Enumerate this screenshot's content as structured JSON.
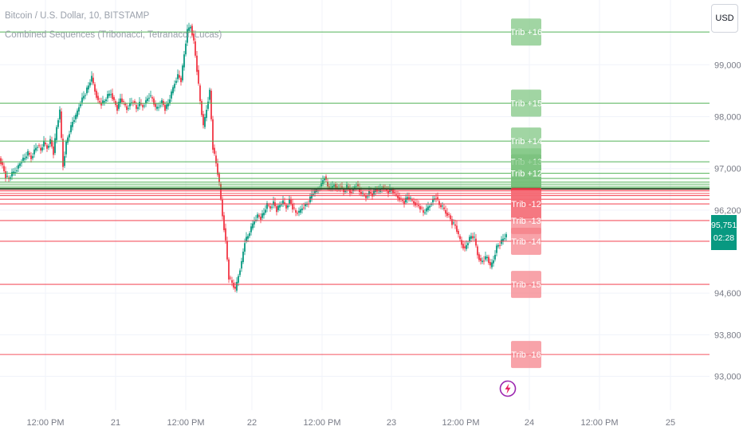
{
  "header": {
    "symbol_line": "Bitcoin / U.S. Dollar, 10, BITSTAMP",
    "indicator_line": "Combined Sequences (Tribonacci, Tetranacci, Lucas)"
  },
  "currency_button": "USD",
  "last_price": {
    "value": "95,751",
    "countdown": "02:28"
  },
  "colors": {
    "up": "#089981",
    "down": "#f23645",
    "grid": "#f0f3fa",
    "level_up": "#4caf50",
    "level_down": "#f23645"
  },
  "chart_data": {
    "type": "candlestick",
    "title": "Bitcoin / U.S. Dollar, 10, BITSTAMP",
    "ylim": [
      92800,
      100400
    ],
    "y_ticks": [
      93000,
      93800,
      94600,
      96200,
      97000,
      98000,
      99000
    ],
    "y_tick_labels": [
      "93,000",
      "93,800",
      "94,600",
      "96,200",
      "97,000",
      "98,000",
      "99,000"
    ],
    "x_ticks": [
      "12:00 PM",
      "21",
      "12:00 PM",
      "22",
      "12:00 PM",
      "23",
      "12:00 PM",
      "24",
      "12:00 PM",
      "25"
    ],
    "price_path": [
      [
        0,
        97200
      ],
      [
        4,
        97050
      ],
      [
        8,
        96850
      ],
      [
        12,
        96800
      ],
      [
        16,
        96900
      ],
      [
        20,
        96950
      ],
      [
        24,
        97050
      ],
      [
        28,
        97150
      ],
      [
        32,
        97200
      ],
      [
        36,
        97300
      ],
      [
        40,
        97200
      ],
      [
        44,
        97350
      ],
      [
        48,
        97450
      ],
      [
        52,
        97350
      ],
      [
        56,
        97500
      ],
      [
        60,
        97400
      ],
      [
        64,
        97550
      ],
      [
        68,
        97300
      ],
      [
        72,
        97800
      ],
      [
        76,
        98100
      ],
      [
        80,
        97050
      ],
      [
        84,
        97500
      ],
      [
        88,
        97700
      ],
      [
        92,
        97900
      ],
      [
        96,
        98000
      ],
      [
        100,
        98200
      ],
      [
        104,
        98350
      ],
      [
        108,
        98450
      ],
      [
        112,
        98600
      ],
      [
        116,
        98750
      ],
      [
        120,
        98500
      ],
      [
        124,
        98300
      ],
      [
        128,
        98250
      ],
      [
        132,
        98300
      ],
      [
        136,
        98400
      ],
      [
        140,
        98450
      ],
      [
        144,
        98300
      ],
      [
        148,
        98150
      ],
      [
        152,
        98350
      ],
      [
        156,
        98250
      ],
      [
        160,
        98150
      ],
      [
        164,
        98250
      ],
      [
        168,
        98300
      ],
      [
        172,
        98150
      ],
      [
        176,
        98250
      ],
      [
        180,
        98200
      ],
      [
        184,
        98300
      ],
      [
        188,
        98400
      ],
      [
        192,
        98350
      ],
      [
        196,
        98150
      ],
      [
        200,
        98200
      ],
      [
        204,
        98300
      ],
      [
        208,
        98150
      ],
      [
        212,
        98250
      ],
      [
        216,
        98450
      ],
      [
        220,
        98650
      ],
      [
        224,
        98800
      ],
      [
        228,
        98700
      ],
      [
        232,
        99200
      ],
      [
        236,
        99650
      ],
      [
        240,
        99750
      ],
      [
        244,
        99450
      ],
      [
        248,
        98900
      ],
      [
        252,
        98300
      ],
      [
        256,
        97800
      ],
      [
        260,
        98150
      ],
      [
        264,
        98500
      ],
      [
        268,
        97400
      ],
      [
        272,
        97100
      ],
      [
        276,
        96700
      ],
      [
        280,
        96100
      ],
      [
        284,
        95600
      ],
      [
        288,
        94900
      ],
      [
        292,
        94800
      ],
      [
        296,
        94650
      ],
      [
        300,
        94950
      ],
      [
        304,
        95200
      ],
      [
        308,
        95600
      ],
      [
        312,
        95700
      ],
      [
        316,
        95850
      ],
      [
        320,
        96000
      ],
      [
        324,
        96100
      ],
      [
        328,
        96050
      ],
      [
        332,
        96150
      ],
      [
        336,
        96300
      ],
      [
        340,
        96250
      ],
      [
        344,
        96350
      ],
      [
        348,
        96200
      ],
      [
        352,
        96300
      ],
      [
        356,
        96350
      ],
      [
        360,
        96250
      ],
      [
        364,
        96400
      ],
      [
        368,
        96250
      ],
      [
        372,
        96150
      ],
      [
        376,
        96150
      ],
      [
        380,
        96250
      ],
      [
        384,
        96300
      ],
      [
        388,
        96350
      ],
      [
        392,
        96500
      ],
      [
        396,
        96550
      ],
      [
        400,
        96600
      ],
      [
        404,
        96700
      ],
      [
        408,
        96850
      ],
      [
        412,
        96650
      ],
      [
        416,
        96600
      ],
      [
        420,
        96700
      ],
      [
        424,
        96600
      ],
      [
        428,
        96650
      ],
      [
        432,
        96550
      ],
      [
        436,
        96650
      ],
      [
        440,
        96550
      ],
      [
        444,
        96600
      ],
      [
        448,
        96700
      ],
      [
        452,
        96550
      ],
      [
        456,
        96500
      ],
      [
        460,
        96450
      ],
      [
        464,
        96550
      ],
      [
        468,
        96500
      ],
      [
        472,
        96600
      ],
      [
        476,
        96550
      ],
      [
        480,
        96650
      ],
      [
        484,
        96600
      ],
      [
        488,
        96550
      ],
      [
        492,
        96600
      ],
      [
        496,
        96500
      ],
      [
        500,
        96450
      ],
      [
        504,
        96400
      ],
      [
        508,
        96350
      ],
      [
        512,
        96450
      ],
      [
        516,
        96400
      ],
      [
        520,
        96350
      ],
      [
        524,
        96300
      ],
      [
        528,
        96250
      ],
      [
        532,
        96150
      ],
      [
        536,
        96200
      ],
      [
        540,
        96300
      ],
      [
        544,
        96400
      ],
      [
        548,
        96450
      ],
      [
        552,
        96300
      ],
      [
        556,
        96250
      ],
      [
        560,
        96150
      ],
      [
        564,
        96100
      ],
      [
        568,
        95950
      ],
      [
        572,
        95900
      ],
      [
        576,
        95700
      ],
      [
        580,
        95550
      ],
      [
        584,
        95450
      ],
      [
        588,
        95600
      ],
      [
        592,
        95700
      ],
      [
        596,
        95650
      ],
      [
        600,
        95350
      ],
      [
        604,
        95200
      ],
      [
        608,
        95250
      ],
      [
        612,
        95300
      ],
      [
        616,
        95100
      ],
      [
        620,
        95250
      ],
      [
        624,
        95500
      ],
      [
        628,
        95550
      ],
      [
        632,
        95650
      ],
      [
        636,
        95700
      ]
    ],
    "levels": [
      {
        "name": "Trib +16",
        "price": 99630,
        "kind": "up",
        "label_visible": true
      },
      {
        "name": "Trib +15",
        "price": 98260,
        "kind": "up",
        "label_visible": true
      },
      {
        "name": "Trib +14",
        "price": 97530,
        "kind": "up",
        "label_visible": true
      },
      {
        "name": "Trib +13",
        "price": 97130,
        "kind": "up",
        "label_visible": true
      },
      {
        "name": "Trib +12",
        "price": 96910,
        "kind": "up",
        "label_visible": true
      },
      {
        "name": "",
        "price": 96810,
        "kind": "up",
        "label_visible": false
      },
      {
        "name": "",
        "price": 96740,
        "kind": "up",
        "label_visible": false
      },
      {
        "name": "",
        "price": 96700,
        "kind": "up",
        "label_visible": false
      },
      {
        "name": "",
        "price": 96660,
        "kind": "up",
        "label_visible": false
      },
      {
        "name": "",
        "price": 96630,
        "kind": "up",
        "label_visible": false
      },
      {
        "name": "",
        "price": 96600,
        "kind": "down",
        "label_visible": false
      },
      {
        "name": "",
        "price": 96570,
        "kind": "down",
        "label_visible": false
      },
      {
        "name": "",
        "price": 96520,
        "kind": "down",
        "label_visible": false
      },
      {
        "name": "",
        "price": 96480,
        "kind": "down",
        "label_visible": false
      },
      {
        "name": "",
        "price": 96410,
        "kind": "down",
        "label_visible": false
      },
      {
        "name": "Trib -12",
        "price": 96320,
        "kind": "down",
        "label_visible": true
      },
      {
        "name": "Trib -13",
        "price": 96000,
        "kind": "down",
        "label_visible": true
      },
      {
        "name": "Trib -14",
        "price": 95600,
        "kind": "down",
        "label_visible": true
      },
      {
        "name": "Trib -15",
        "price": 94770,
        "kind": "down",
        "label_visible": true
      },
      {
        "name": "Trib -16",
        "price": 93420,
        "kind": "down",
        "label_visible": true
      }
    ],
    "grid": true
  }
}
